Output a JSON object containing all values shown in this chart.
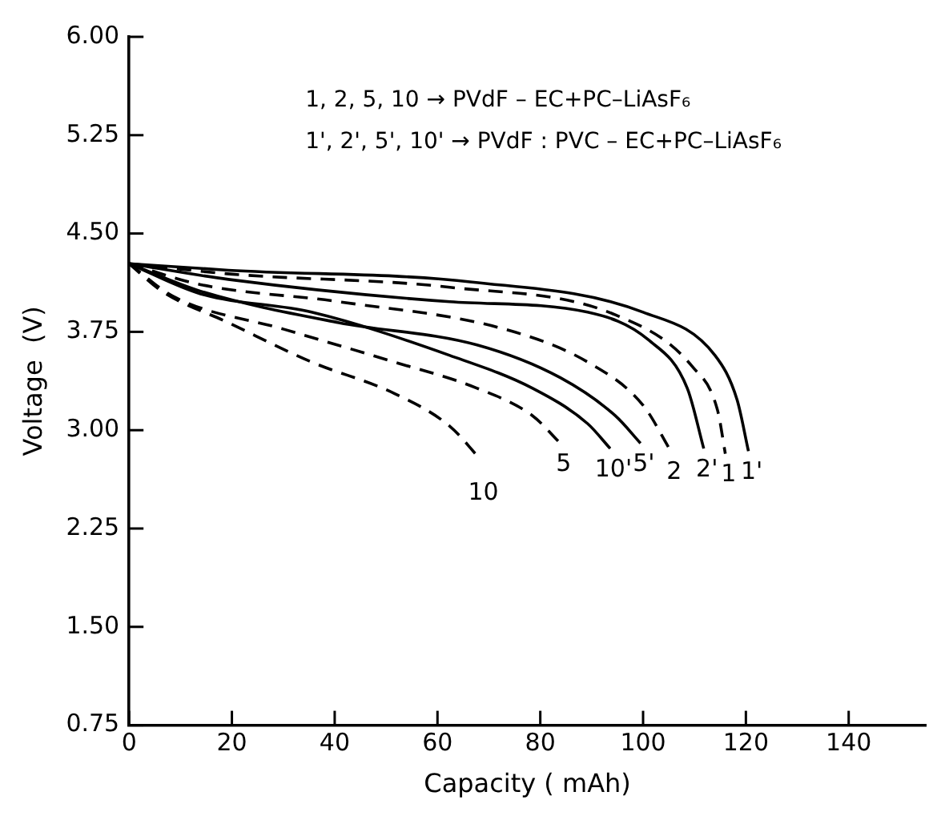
{
  "chart_data": {
    "type": "line",
    "xlabel": "Capacity ( mAh)",
    "ylabel": "Voltage  (V)",
    "annotations": [
      "1, 2, 5, 10 → PVdF – EC+PC–LiAsF₆",
      "1', 2', 5', 10' → PVdF : PVC – EC+PC–LiAsF₆"
    ],
    "xlim": [
      0,
      155
    ],
    "xticks": [
      0,
      20,
      40,
      60,
      80,
      100,
      120,
      140
    ],
    "ylim": [
      0.75,
      6
    ],
    "yticks": [
      {
        "value": 0.75,
        "label": "0.75"
      },
      {
        "value": 1.5,
        "label": "1.50"
      },
      {
        "value": 2.25,
        "label": "2.25"
      },
      {
        "value": 3,
        "label": "3.00"
      },
      {
        "value": 3.75,
        "label": "3.75"
      },
      {
        "value": 4.5,
        "label": "4.50"
      },
      {
        "value": 5.25,
        "label": "5.25"
      },
      {
        "value": 6,
        "label": "6.00"
      }
    ],
    "grid": false,
    "legend": false,
    "marker": "none",
    "series": [
      {
        "name": "1'",
        "color": "#000000",
        "line_style": "solid",
        "x": [
          0,
          19.3,
          66.7,
          100,
          114,
          118.3,
          120.5
        ],
        "values": [
          4.27,
          4.22,
          4.13,
          3.9,
          3.57,
          3.23,
          2.84
        ]
      },
      {
        "name": "1",
        "color": "#000000",
        "line_style": "dashed",
        "x": [
          0,
          20,
          62.4,
          94.6,
          109.7,
          114.5,
          116
        ],
        "values": [
          4.27,
          4.19,
          4.09,
          3.88,
          3.48,
          3.15,
          2.82
        ]
      },
      {
        "name": "2'",
        "color": "#000000",
        "line_style": "solid",
        "x": [
          0,
          19.3,
          62.4,
          89.2,
          101,
          108.6,
          111.8
        ],
        "values": [
          4.27,
          4.15,
          3.98,
          3.9,
          3.69,
          3.32,
          2.86
        ]
      },
      {
        "name": "2",
        "color": "#000000",
        "line_style": "dashed",
        "x": [
          0,
          13.9,
          40.8,
          73.1,
          89.2,
          100,
          105.4
        ],
        "values": [
          4.27,
          4.11,
          3.98,
          3.77,
          3.52,
          3.19,
          2.84
        ]
      },
      {
        "name": "5'",
        "color": "#000000",
        "line_style": "solid",
        "x": [
          0,
          13.9,
          40.8,
          67.7,
          83.9,
          94.6,
          99.5
        ],
        "values": [
          4.27,
          4.06,
          3.82,
          3.65,
          3.4,
          3.11,
          2.9
        ]
      },
      {
        "name": "10'",
        "color": "#000000",
        "line_style": "solid",
        "x": [
          0,
          13.9,
          35.5,
          62.4,
          78.5,
          89.2,
          93.6
        ],
        "values": [
          4.27,
          4.04,
          3.9,
          3.57,
          3.32,
          3.05,
          2.86
        ]
      },
      {
        "name": "5",
        "color": "#000000",
        "line_style": "dashed",
        "x": [
          0,
          8.6,
          30.1,
          51.6,
          67.7,
          78.5,
          83.9
        ],
        "values": [
          4.27,
          4.02,
          3.77,
          3.52,
          3.32,
          3.11,
          2.9
        ]
      },
      {
        "name": "10",
        "color": "#000000",
        "line_style": "dashed",
        "x": [
          0,
          6.4,
          19.3,
          35.5,
          51.6,
          62.4,
          68.3
        ],
        "values": [
          4.27,
          4.06,
          3.82,
          3.52,
          3.28,
          3.03,
          2.78
        ]
      }
    ]
  }
}
